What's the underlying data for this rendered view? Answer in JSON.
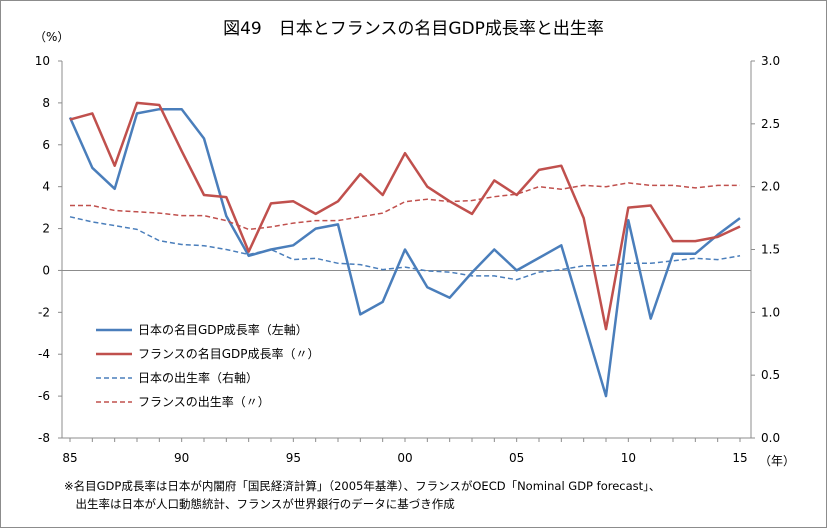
{
  "chart_data": {
    "type": "line",
    "title": "図49　日本とフランスの名目GDP成長率と出生率",
    "left_axis_unit": "（%）",
    "x_axis_unit": "（年）",
    "ylim_left": [
      -8,
      10
    ],
    "ylim_right": [
      0.0,
      3.0
    ],
    "y_ticks_left": [
      "10",
      "8",
      "6",
      "4",
      "2",
      "0",
      "-2",
      "-4",
      "-6",
      "-8"
    ],
    "y_ticks_right": [
      "3.0",
      "2.5",
      "2.0",
      "1.5",
      "1.0",
      "0.5",
      "0.0"
    ],
    "x_tick_labels": [
      {
        "year": 1985,
        "label": "85"
      },
      {
        "year": 1990,
        "label": "90"
      },
      {
        "year": 1995,
        "label": "95"
      },
      {
        "year": 2000,
        "label": "00"
      },
      {
        "year": 2005,
        "label": "05"
      },
      {
        "year": 2010,
        "label": "10"
      },
      {
        "year": 2015,
        "label": "15"
      }
    ],
    "x": [
      1985,
      1986,
      1987,
      1988,
      1989,
      1990,
      1991,
      1992,
      1993,
      1994,
      1995,
      1996,
      1997,
      1998,
      1999,
      2000,
      2001,
      2002,
      2003,
      2004,
      2005,
      2006,
      2007,
      2008,
      2009,
      2010,
      2011,
      2012,
      2013,
      2014,
      2015
    ],
    "series": [
      {
        "name": "日本の名目GDP成長率（左軸）",
        "axis": "left",
        "color": "#4a7ebb",
        "dash": false,
        "values": [
          7.3,
          4.9,
          3.9,
          7.5,
          7.7,
          7.7,
          6.3,
          2.6,
          0.7,
          1.0,
          1.2,
          2.0,
          2.2,
          -2.1,
          -1.5,
          1.0,
          -0.8,
          -1.3,
          -0.1,
          1.0,
          0.0,
          0.6,
          1.2,
          -2.4,
          -6.0,
          2.4,
          -2.3,
          0.8,
          0.8,
          1.7,
          2.5
        ]
      },
      {
        "name": "フランスの名目GDP成長率（〃）",
        "axis": "left",
        "color": "#c0504d",
        "dash": false,
        "values": [
          7.2,
          7.5,
          5.0,
          8.0,
          7.9,
          5.7,
          3.6,
          3.5,
          0.9,
          3.2,
          3.3,
          2.7,
          3.3,
          4.6,
          3.6,
          5.6,
          4.0,
          3.3,
          2.7,
          4.3,
          3.6,
          4.8,
          5.0,
          2.5,
          -2.8,
          3.0,
          3.1,
          1.4,
          1.4,
          1.6,
          2.1
        ]
      },
      {
        "name": "日本の出生率（右軸）",
        "axis": "right",
        "color": "#4a7ebb",
        "dash": true,
        "values": [
          1.76,
          1.72,
          1.69,
          1.66,
          1.57,
          1.54,
          1.53,
          1.5,
          1.46,
          1.5,
          1.42,
          1.43,
          1.39,
          1.38,
          1.34,
          1.36,
          1.33,
          1.32,
          1.29,
          1.29,
          1.26,
          1.32,
          1.34,
          1.37,
          1.37,
          1.39,
          1.39,
          1.41,
          1.43,
          1.42,
          1.45
        ]
      },
      {
        "name": "フランスの出生率（〃）",
        "axis": "right",
        "color": "#c0504d",
        "dash": true,
        "values": [
          1.85,
          1.85,
          1.81,
          1.8,
          1.79,
          1.77,
          1.77,
          1.73,
          1.66,
          1.68,
          1.71,
          1.73,
          1.73,
          1.76,
          1.79,
          1.88,
          1.9,
          1.88,
          1.89,
          1.92,
          1.94,
          2.0,
          1.98,
          2.01,
          2.0,
          2.03,
          2.01,
          2.01,
          1.99,
          2.01,
          2.01
        ]
      }
    ],
    "legend_position": "lower-left",
    "grid": false
  },
  "notes": [
    "※名目GDP成長率は日本が内閣府「国民経済計算」（2005年基準）、フランスがOECD「Nominal GDP forecast」、",
    "　出生率は日本が人口動態統計、フランスが世界銀行のデータに基づき作成"
  ]
}
